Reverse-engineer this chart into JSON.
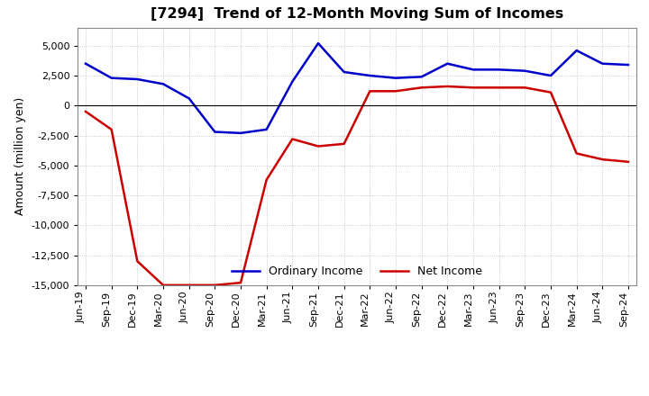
{
  "title": "[7294]  Trend of 12-Month Moving Sum of Incomes",
  "ylabel": "Amount (million yen)",
  "ylim": [
    -15000,
    6500
  ],
  "yticks": [
    -15000,
    -12500,
    -10000,
    -7500,
    -5000,
    -2500,
    0,
    2500,
    5000
  ],
  "background_color": "#ffffff",
  "plot_bg_color": "#ffffff",
  "grid_color": "#bbbbbb",
  "labels": [
    "Jun-19",
    "Sep-19",
    "Dec-19",
    "Mar-20",
    "Jun-20",
    "Sep-20",
    "Dec-20",
    "Mar-21",
    "Jun-21",
    "Sep-21",
    "Dec-21",
    "Mar-22",
    "Jun-22",
    "Sep-22",
    "Dec-22",
    "Mar-23",
    "Jun-23",
    "Sep-23",
    "Dec-23",
    "Mar-24",
    "Jun-24",
    "Sep-24"
  ],
  "ordinary_income": [
    3500,
    2300,
    2200,
    1800,
    600,
    -2200,
    -2300,
    -2000,
    2000,
    5200,
    2800,
    2500,
    2300,
    2400,
    3500,
    3000,
    3000,
    2900,
    2500,
    4600,
    3500,
    3400
  ],
  "net_income": [
    -500,
    -2000,
    -13000,
    -15000,
    -15000,
    -15000,
    -14800,
    -6200,
    -2800,
    -3400,
    -3200,
    1200,
    1200,
    1500,
    1600,
    1500,
    1500,
    1500,
    1100,
    -4000,
    -4500,
    -4700
  ],
  "ordinary_color": "#0000cc",
  "net_color": "#cc0000",
  "line_width": 1.8
}
